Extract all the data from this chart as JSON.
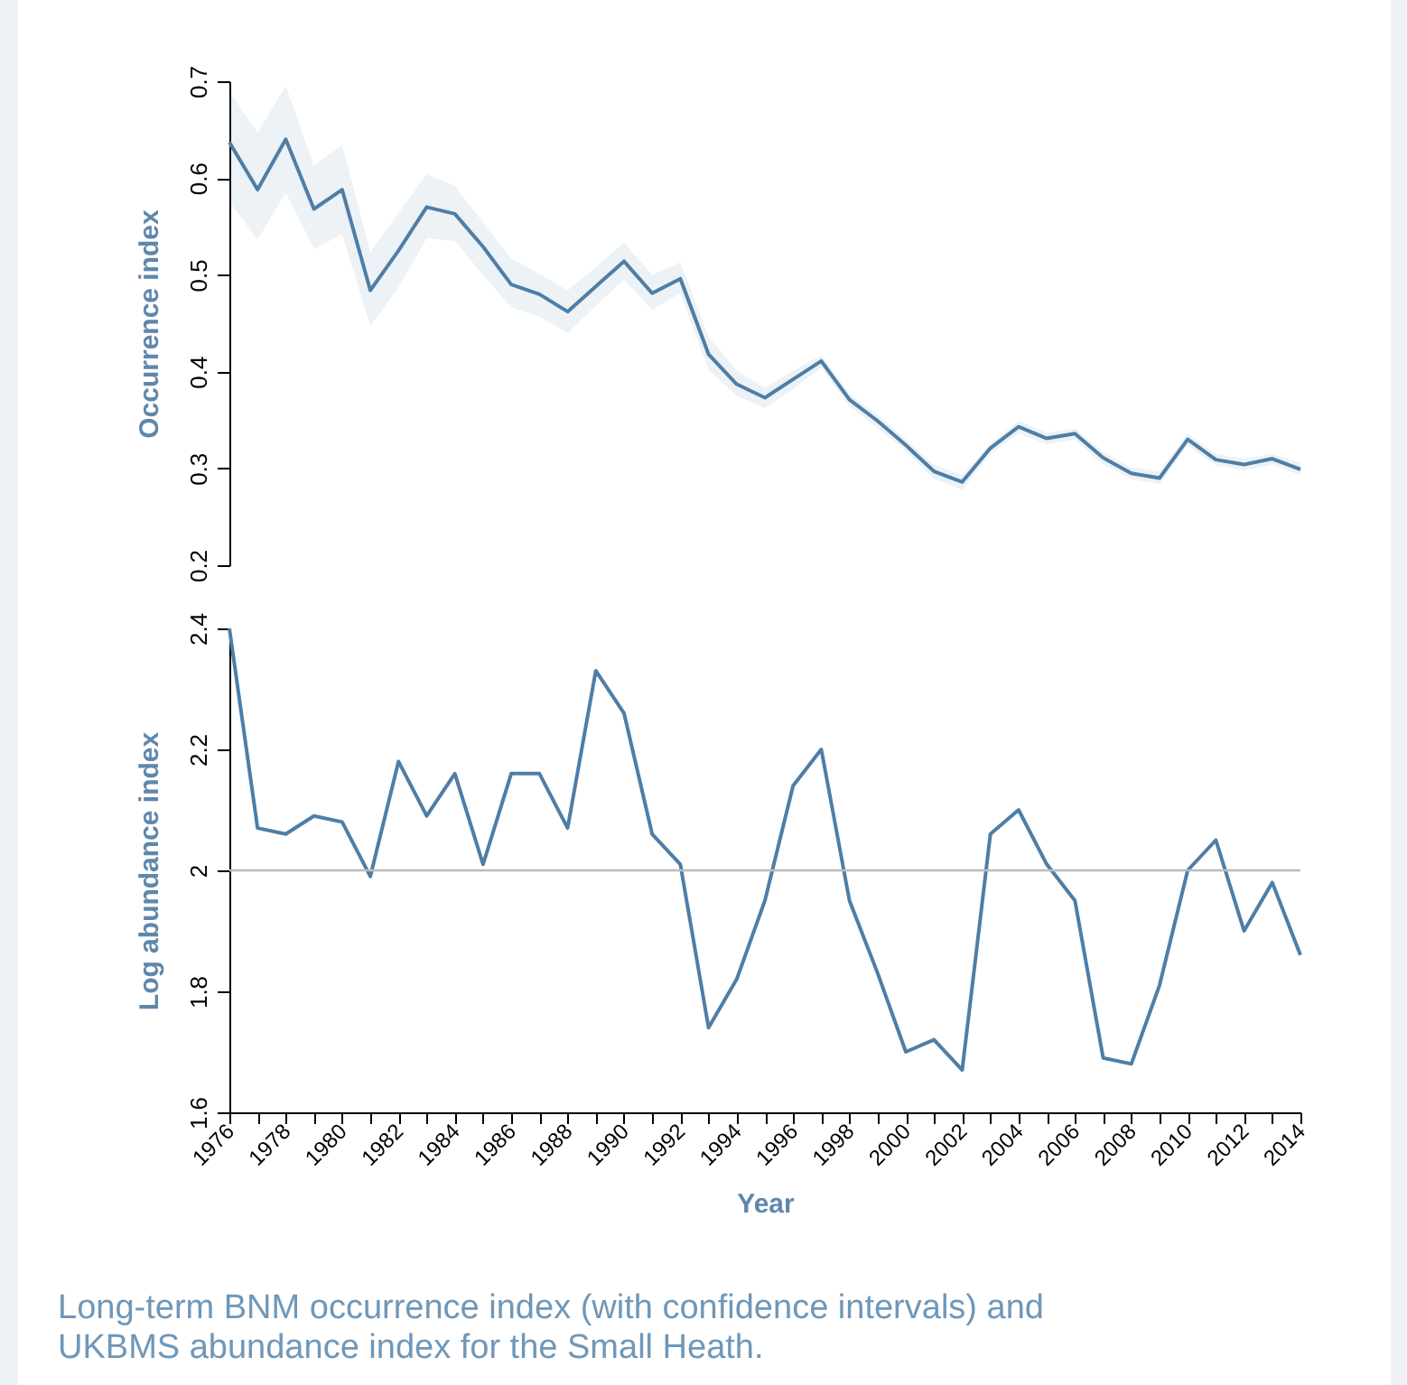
{
  "chart_data": [
    {
      "type": "line",
      "ylabel": "Occurrence index",
      "x": [
        1976,
        1977,
        1978,
        1979,
        1980,
        1981,
        1982,
        1983,
        1984,
        1985,
        1986,
        1987,
        1988,
        1989,
        1990,
        1991,
        1992,
        1993,
        1994,
        1995,
        1996,
        1997,
        1998,
        1999,
        2000,
        2001,
        2002,
        2003,
        2004,
        2005,
        2006,
        2007,
        2008,
        2009,
        2010,
        2011,
        2012,
        2013,
        2014
      ],
      "series": [
        {
          "color": "#4e7ea6",
          "values": [
            0.637,
            0.588,
            0.64,
            0.568,
            0.588,
            0.484,
            0.525,
            0.57,
            0.563,
            0.529,
            0.49,
            0.48,
            0.462,
            0.488,
            0.514,
            0.481,
            0.496,
            0.418,
            0.387,
            0.373,
            0.392,
            0.411,
            0.371,
            0.349,
            0.324,
            0.297,
            0.286,
            0.321,
            0.343,
            0.331,
            0.336,
            0.311,
            0.295,
            0.29,
            0.33,
            0.309,
            0.304,
            0.31,
            0.299
          ],
          "upper": [
            0.689,
            0.647,
            0.695,
            0.613,
            0.634,
            0.524,
            0.564,
            0.604,
            0.592,
            0.554,
            0.517,
            0.501,
            0.484,
            0.508,
            0.533,
            0.5,
            0.513,
            0.436,
            0.401,
            0.383,
            0.401,
            0.417,
            0.377,
            0.355,
            0.33,
            0.304,
            0.293,
            0.325,
            0.349,
            0.337,
            0.341,
            0.317,
            0.301,
            0.297,
            0.336,
            0.315,
            0.31,
            0.315,
            0.306
          ],
          "lower": [
            0.576,
            0.536,
            0.585,
            0.527,
            0.542,
            0.447,
            0.487,
            0.538,
            0.535,
            0.5,
            0.466,
            0.457,
            0.44,
            0.468,
            0.495,
            0.464,
            0.481,
            0.402,
            0.375,
            0.362,
            0.382,
            0.404,
            0.364,
            0.342,
            0.318,
            0.289,
            0.278,
            0.315,
            0.336,
            0.325,
            0.33,
            0.304,
            0.289,
            0.284,
            0.324,
            0.303,
            0.298,
            0.304,
            0.293
          ]
        }
      ],
      "xlim": [
        1976,
        2014
      ],
      "ylim": [
        0.2,
        0.7
      ],
      "yticks": [
        0.2,
        0.3,
        0.4,
        0.5,
        0.6,
        0.7
      ],
      "tick_labels": "y"
    },
    {
      "type": "line",
      "xlabel": "Year",
      "ylabel": "Log abundance index",
      "x": [
        1976,
        1977,
        1978,
        1979,
        1980,
        1981,
        1982,
        1983,
        1984,
        1985,
        1986,
        1987,
        1988,
        1989,
        1990,
        1991,
        1992,
        1993,
        1994,
        1995,
        1996,
        1997,
        1998,
        1999,
        2000,
        2001,
        2002,
        2003,
        2004,
        2005,
        2006,
        2007,
        2008,
        2009,
        2010,
        2011,
        2012,
        2013,
        2014
      ],
      "series": [
        {
          "color": "#4e7ea6",
          "values": [
            2.4,
            2.07,
            2.06,
            2.09,
            2.08,
            1.99,
            2.18,
            2.09,
            2.16,
            2.01,
            2.16,
            2.16,
            2.07,
            2.33,
            2.26,
            2.06,
            2.01,
            1.74,
            1.82,
            1.95,
            2.14,
            2.2,
            1.95,
            1.83,
            1.7,
            1.72,
            1.67,
            2.06,
            2.1,
            2.01,
            1.95,
            1.69,
            1.68,
            1.81,
            2.0,
            2.05,
            1.9,
            1.98,
            1.86
          ]
        }
      ],
      "xlim": [
        1976,
        2014
      ],
      "xticks": [
        1976,
        {
          "value": 1977,
          "label": null
        },
        1978,
        {
          "value": 1979,
          "label": null
        },
        1980,
        {
          "value": 1981,
          "label": null
        },
        1982,
        {
          "value": 1983,
          "label": null
        },
        1984,
        {
          "value": 1985,
          "label": null
        },
        1986,
        {
          "value": 1987,
          "label": null
        },
        1988,
        {
          "value": 1989,
          "label": null
        },
        1990,
        {
          "value": 1991,
          "label": null
        },
        1992,
        {
          "value": 1993,
          "label": null
        },
        1994,
        {
          "value": 1995,
          "label": null
        },
        1996,
        {
          "value": 1997,
          "label": null
        },
        1998,
        {
          "value": 1999,
          "label": null
        },
        2000,
        {
          "value": 2001,
          "label": null
        },
        2002,
        {
          "value": 2003,
          "label": null
        },
        2004,
        {
          "value": 2005,
          "label": null
        },
        2006,
        {
          "value": 2007,
          "label": null
        },
        2008,
        {
          "value": 2009,
          "label": null
        },
        2010,
        {
          "value": 2011,
          "label": null
        },
        2012,
        {
          "value": 2013,
          "label": null
        },
        2014
      ],
      "ylim": [
        1.6,
        2.4
      ],
      "yticks": [
        1.6,
        1.8,
        2,
        2.2,
        2.4
      ],
      "ref_lines": [
        {
          "axis": "y",
          "value": 2,
          "color": "#bbbbbb"
        }
      ],
      "annotations": [
        "Long-term BNM occurrence index (with confidence intervals) and UKBMS abundance index for the Small Heath."
      ]
    }
  ]
}
